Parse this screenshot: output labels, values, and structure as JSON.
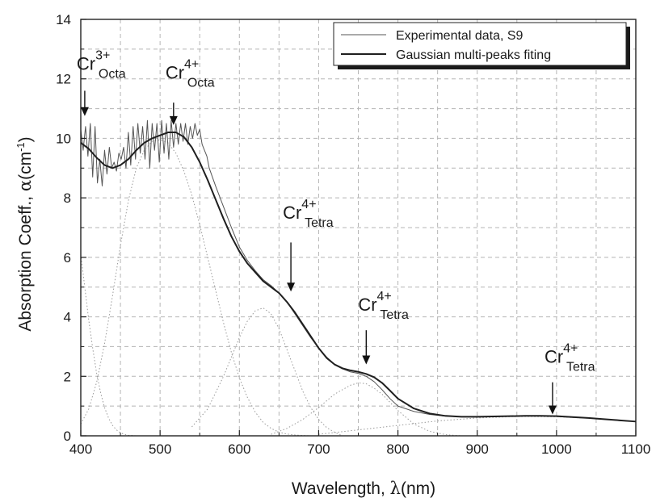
{
  "chart_data": {
    "type": "line",
    "xlabel_main": "Wavelength, ",
    "xlabel_greek": "λ",
    "xlabel_unit": "(nm)",
    "ylabel_main": "Absorption Coeff., ",
    "ylabel_greek": "α",
    "ylabel_unit_pre": "(cm",
    "ylabel_unit_sup": "-1",
    "ylabel_unit_post": ")",
    "xlim": [
      400,
      1100
    ],
    "ylim": [
      0,
      14
    ],
    "xticks": [
      400,
      500,
      600,
      700,
      800,
      900,
      1000,
      1100
    ],
    "yticks": [
      0,
      2,
      4,
      6,
      8,
      10,
      12,
      14
    ],
    "grid": true,
    "legend_position": "top-right",
    "series": [
      {
        "name": "Experimental data, S9",
        "color": "#555555",
        "width": 1.0,
        "x": [
          400,
          403,
          406,
          409,
          412,
          415,
          418,
          421,
          424,
          427,
          430,
          433,
          436,
          439,
          442,
          445,
          448,
          451,
          454,
          457,
          460,
          463,
          466,
          469,
          472,
          475,
          478,
          481,
          484,
          487,
          490,
          493,
          496,
          499,
          502,
          505,
          508,
          511,
          514,
          517,
          520,
          523,
          526,
          529,
          532,
          535,
          538,
          541,
          544,
          547,
          550,
          553,
          556,
          559,
          562,
          570,
          580,
          590,
          600,
          610,
          620,
          630,
          640,
          650,
          660,
          670,
          680,
          690,
          700,
          710,
          720,
          730,
          740,
          750,
          760,
          770,
          780,
          790,
          800,
          820,
          840,
          860,
          880,
          900,
          920,
          940,
          960,
          980,
          1000,
          1020,
          1040,
          1060,
          1080,
          1100
        ],
        "y": [
          10.3,
          9.6,
          10.4,
          9.4,
          10.5,
          8.7,
          10.4,
          8.5,
          9.3,
          8.4,
          9.6,
          8.8,
          9.7,
          9.0,
          9.2,
          8.9,
          9.5,
          9.3,
          9.7,
          9.0,
          10.2,
          9.1,
          10.4,
          9.3,
          10.5,
          9.5,
          10.4,
          9.3,
          10.6,
          9.0,
          10.5,
          9.6,
          10.5,
          9.2,
          10.6,
          9.5,
          10.5,
          9.3,
          10.6,
          9.7,
          10.5,
          9.8,
          10.5,
          9.9,
          10.5,
          9.8,
          10.4,
          10.0,
          10.5,
          10.1,
          10.3,
          9.8,
          9.6,
          9.4,
          9.0,
          8.4,
          7.7,
          7.0,
          6.35,
          5.9,
          5.55,
          5.25,
          5.05,
          4.8,
          4.5,
          4.1,
          3.7,
          3.3,
          2.95,
          2.65,
          2.4,
          2.25,
          2.15,
          2.1,
          2.0,
          1.82,
          1.55,
          1.25,
          1.0,
          0.82,
          0.72,
          0.66,
          0.64,
          0.63,
          0.64,
          0.66,
          0.67,
          0.67,
          0.65,
          0.62,
          0.6,
          0.56,
          0.51,
          0.48
        ]
      },
      {
        "name": "Gaussian multi-peaks fiting",
        "color": "#1f1f1f",
        "width": 2.0,
        "x": [
          400,
          410,
          420,
          430,
          440,
          450,
          460,
          470,
          480,
          490,
          500,
          510,
          520,
          530,
          540,
          550,
          560,
          570,
          580,
          590,
          600,
          610,
          620,
          630,
          640,
          650,
          660,
          670,
          680,
          690,
          700,
          710,
          720,
          730,
          740,
          750,
          760,
          770,
          780,
          790,
          800,
          820,
          840,
          860,
          880,
          900,
          920,
          940,
          960,
          980,
          1000,
          1020,
          1040,
          1060,
          1080,
          1100
        ],
        "y": [
          9.85,
          9.65,
          9.35,
          9.1,
          9.0,
          9.1,
          9.3,
          9.6,
          9.85,
          10.0,
          10.1,
          10.2,
          10.2,
          10.05,
          9.7,
          9.2,
          8.6,
          7.95,
          7.3,
          6.7,
          6.2,
          5.8,
          5.5,
          5.2,
          5.0,
          4.8,
          4.5,
          4.15,
          3.75,
          3.35,
          2.95,
          2.62,
          2.4,
          2.27,
          2.2,
          2.15,
          2.08,
          1.97,
          1.78,
          1.52,
          1.25,
          0.92,
          0.75,
          0.67,
          0.64,
          0.64,
          0.65,
          0.66,
          0.67,
          0.67,
          0.66,
          0.63,
          0.6,
          0.56,
          0.52,
          0.48
        ]
      },
      {
        "name": "",
        "color": "#9a9a9a",
        "width": 1.0,
        "dash": "1.5,2.5",
        "x": [
          400,
          405,
          410,
          415,
          420,
          425,
          430,
          435,
          440,
          445,
          450,
          455,
          460,
          465,
          470
        ],
        "y": [
          6.1,
          5.0,
          3.9,
          2.95,
          2.1,
          1.45,
          0.95,
          0.6,
          0.35,
          0.2,
          0.1,
          0.05,
          0.02,
          0.01,
          0.0
        ]
      },
      {
        "name": "",
        "color": "#9a9a9a",
        "width": 1.0,
        "dash": "1.5,2.5",
        "x": [
          400,
          410,
          420,
          430,
          440,
          450,
          460,
          470,
          480,
          490,
          500,
          510,
          520,
          530,
          540,
          550,
          560,
          570,
          580,
          590,
          600,
          610,
          620,
          630,
          640,
          650,
          660,
          670,
          680,
          690,
          700
        ],
        "y": [
          0.4,
          0.9,
          1.8,
          3.1,
          4.7,
          6.4,
          7.9,
          9.0,
          9.6,
          9.9,
          9.95,
          9.85,
          9.5,
          8.9,
          8.1,
          7.1,
          6.0,
          4.9,
          3.8,
          2.8,
          1.95,
          1.3,
          0.8,
          0.45,
          0.25,
          0.12,
          0.06,
          0.03,
          0.01,
          0.0,
          0.0
        ]
      },
      {
        "name": "",
        "color": "#9a9a9a",
        "width": 1.0,
        "dash": "1.5,2.5",
        "x": [
          540,
          560,
          580,
          600,
          610,
          620,
          630,
          640,
          650,
          660,
          670,
          680,
          690,
          700,
          710,
          720,
          730
        ],
        "y": [
          0.3,
          0.9,
          2.0,
          3.3,
          3.85,
          4.2,
          4.3,
          4.1,
          3.6,
          2.9,
          2.2,
          1.5,
          0.95,
          0.55,
          0.28,
          0.12,
          0.0
        ]
      },
      {
        "name": "",
        "color": "#9a9a9a",
        "width": 1.0,
        "dash": "1.5,2.5",
        "x": [
          640,
          660,
          680,
          700,
          720,
          740,
          750,
          760,
          770,
          780,
          800,
          820,
          840,
          860,
          880
        ],
        "y": [
          0.05,
          0.25,
          0.55,
          0.95,
          1.4,
          1.7,
          1.78,
          1.75,
          1.6,
          1.4,
          0.85,
          0.4,
          0.15,
          0.04,
          0.0
        ]
      },
      {
        "name": "",
        "color": "#9a9a9a",
        "width": 1.0,
        "dash": "1.5,2.5",
        "x": [
          700,
          750,
          800,
          850,
          900,
          950,
          1000,
          1050,
          1100
        ],
        "y": [
          0.05,
          0.2,
          0.35,
          0.5,
          0.6,
          0.65,
          0.64,
          0.58,
          0.48
        ]
      }
    ],
    "annotations": [
      {
        "label": "Cr",
        "sup": "3+",
        "sub": "Octa",
        "x": 405,
        "y_tip": 10.75,
        "y_tail": 11.6,
        "label_y": 12.3
      },
      {
        "label": "Cr",
        "sup": "4+",
        "sub": "Octa",
        "x": 517,
        "y_tip": 10.45,
        "y_tail": 11.2,
        "label_y": 12.0
      },
      {
        "label": "Cr",
        "sup": "4+",
        "sub": "Tetra",
        "x": 665,
        "y_tip": 4.85,
        "y_tail": 6.5,
        "label_y": 7.3
      },
      {
        "label": "Cr",
        "sup": "4+",
        "sub": "Tetra",
        "x": 760,
        "y_tip": 2.4,
        "y_tail": 3.55,
        "label_y": 4.2
      },
      {
        "label": "Cr",
        "sup": "4+",
        "sub": "Tetra",
        "x": 995,
        "y_tip": 0.72,
        "y_tail": 1.8,
        "label_y": 2.45
      }
    ]
  }
}
